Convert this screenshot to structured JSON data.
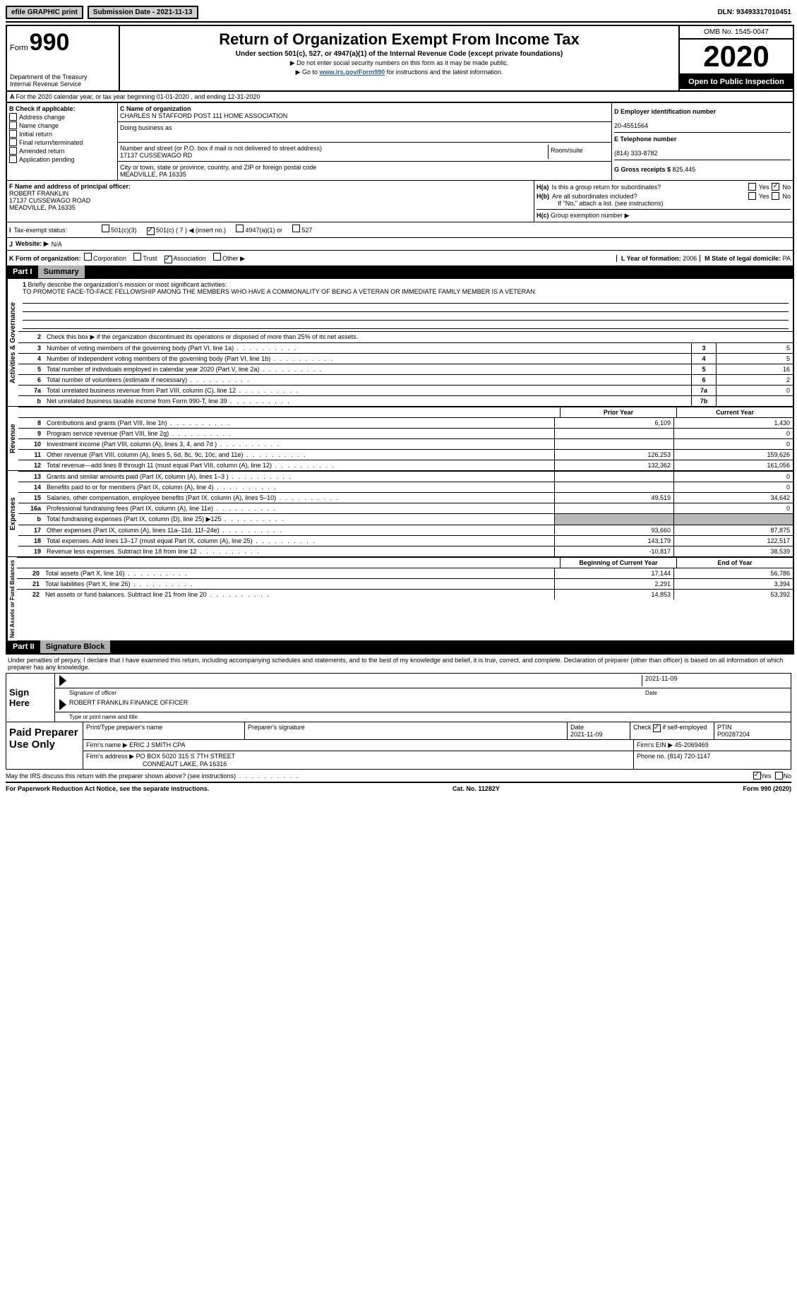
{
  "topbar": {
    "efile": "efile GRAPHIC print",
    "subdate_label": "Submission Date - ",
    "subdate": "2021-11-13",
    "dln_label": "DLN: ",
    "dln": "93493317010451"
  },
  "header": {
    "form_word": "Form",
    "form_num": "990",
    "dept": "Department of the Treasury\nInternal Revenue Service",
    "title": "Return of Organization Exempt From Income Tax",
    "subtitle": "Under section 501(c), 527, or 4947(a)(1) of the Internal Revenue Code (except private foundations)",
    "line1": "▶ Do not enter social security numbers on this form as it may be made public.",
    "line2a": "▶ Go to ",
    "line2link": "www.irs.gov/Form990",
    "line2b": " for instructions and the latest information.",
    "omb": "OMB No. 1545-0047",
    "year": "2020",
    "open": "Open to Public Inspection"
  },
  "a_line": "For the 2020 calendar year, or tax year beginning 01-01-2020     , and ending 12-31-2020",
  "b": {
    "hdr": "B Check if applicable:",
    "items": [
      "Address change",
      "Name change",
      "Initial return",
      "Final return/terminated",
      "Amended return",
      "Application pending"
    ]
  },
  "c": {
    "label": "C Name of organization",
    "name": "CHARLES N STAFFORD POST 111 HOME ASSOCIATION",
    "dba_label": "Doing business as",
    "addr_label": "Number and street (or P.O. box if mail is not delivered to street address)",
    "room": "Room/suite",
    "addr": "17137 CUSSEWAGO RD",
    "city_label": "City or town, state or province, country, and ZIP or foreign postal code",
    "city": "MEADVILLE, PA  16335"
  },
  "d": {
    "label": "D Employer identification number",
    "val": "20-4551564"
  },
  "e": {
    "label": "E Telephone number",
    "val": "(814) 333-8782"
  },
  "g": {
    "label": "G Gross receipts $ ",
    "val": "825,445"
  },
  "f": {
    "label": "F  Name and address of principal officer:",
    "name": "ROBERT FRANKLIN",
    "addr1": "17137 CUSSEWAGO ROAD",
    "addr2": "MEADVILLE, PA  16335"
  },
  "h": {
    "a": "Is this a group return for subordinates?",
    "b": "Are all subordinates included?",
    "bnote": "If \"No,\" attach a list. (see instructions)",
    "c": "Group exemption number ▶",
    "yes": "Yes",
    "no": "No"
  },
  "i": {
    "label": "Tax-exempt status:",
    "opts": [
      "501(c)(3)",
      "501(c) ( 7 ) ◀ (insert no.)",
      "4947(a)(1) or",
      "527"
    ],
    "checked": 1
  },
  "j": {
    "label": "Website: ▶",
    "val": "N/A"
  },
  "k": {
    "label": "K Form of organization:",
    "opts": [
      "Corporation",
      "Trust",
      "Association",
      "Other ▶"
    ],
    "checked": 2
  },
  "l": {
    "label": "L Year of formation: ",
    "val": "2006"
  },
  "m": {
    "label": "M State of legal domicile: ",
    "val": "PA"
  },
  "part1": {
    "num": "Part I",
    "title": "Summary"
  },
  "mission": {
    "num": "1",
    "label": "Briefly describe the organization's mission or most significant activities:",
    "text": "TO PROMOTE FACE-TO-FACE FELLOWSHIP AMONG THE MEMBERS WHO HAVE A COMMONALITY OF BEING A VETERAN OR IMMEDIATE FAMILY MEMBER IS A VETERAN."
  },
  "l2": "Check this box ▶      if the organization discontinued its operations or disposed of more than 25% of its net assets.",
  "lines_gov": [
    {
      "n": "3",
      "t": "Number of voting members of the governing body (Part VI, line 1a)",
      "box": "3",
      "v": "5"
    },
    {
      "n": "4",
      "t": "Number of independent voting members of the governing body (Part VI, line 1b)",
      "box": "4",
      "v": "5"
    },
    {
      "n": "5",
      "t": "Total number of individuals employed in calendar year 2020 (Part V, line 2a)",
      "box": "5",
      "v": "16"
    },
    {
      "n": "6",
      "t": "Total number of volunteers (estimate if necessary)",
      "box": "6",
      "v": "2"
    },
    {
      "n": "7a",
      "t": "Total unrelated business revenue from Part VIII, column (C), line 12",
      "box": "7a",
      "v": "0"
    },
    {
      "n": "b",
      "t": "Net unrelated business taxable income from Form 990-T, line 39",
      "box": "7b",
      "v": ""
    }
  ],
  "colhdr": {
    "c1": "Prior Year",
    "c2": "Current Year"
  },
  "rev": [
    {
      "n": "8",
      "t": "Contributions and grants (Part VIII, line 1h)",
      "c1": "6,109",
      "c2": "1,430"
    },
    {
      "n": "9",
      "t": "Program service revenue (Part VIII, line 2g)",
      "c1": "",
      "c2": "0"
    },
    {
      "n": "10",
      "t": "Investment income (Part VIII, column (A), lines 3, 4, and 7d )",
      "c1": "",
      "c2": "0"
    },
    {
      "n": "11",
      "t": "Other revenue (Part VIII, column (A), lines 5, 6d, 8c, 9c, 10c, and 11e)",
      "c1": "126,253",
      "c2": "159,626"
    },
    {
      "n": "12",
      "t": "Total revenue—add lines 8 through 11 (must equal Part VIII, column (A), line 12)",
      "c1": "132,362",
      "c2": "161,056"
    }
  ],
  "exp": [
    {
      "n": "13",
      "t": "Grants and similar amounts paid (Part IX, column (A), lines 1–3 )",
      "c1": "",
      "c2": "0"
    },
    {
      "n": "14",
      "t": "Benefits paid to or for members (Part IX, column (A), line 4)",
      "c1": "",
      "c2": "0"
    },
    {
      "n": "15",
      "t": "Salaries, other compensation, employee benefits (Part IX, column (A), lines 5–10)",
      "c1": "49,519",
      "c2": "34,642"
    },
    {
      "n": "16a",
      "t": "Professional fundraising fees (Part IX, column (A), line 11e)",
      "c1": "",
      "c2": "0"
    },
    {
      "n": "b",
      "t": "Total fundraising expenses (Part IX, column (D), line 25) ▶125",
      "c1": "grey",
      "c2": "grey"
    },
    {
      "n": "17",
      "t": "Other expenses (Part IX, column (A), lines 11a–11d, 11f–24e)",
      "c1": "93,660",
      "c2": "87,875"
    },
    {
      "n": "18",
      "t": "Total expenses. Add lines 13–17 (must equal Part IX, column (A), line 25)",
      "c1": "143,179",
      "c2": "122,517"
    },
    {
      "n": "19",
      "t": "Revenue less expenses. Subtract line 18 from line 12",
      "c1": "-10,817",
      "c2": "38,539"
    }
  ],
  "colhdr2": {
    "c1": "Beginning of Current Year",
    "c2": "End of Year"
  },
  "net": [
    {
      "n": "20",
      "t": "Total assets (Part X, line 16)",
      "c1": "17,144",
      "c2": "56,786"
    },
    {
      "n": "21",
      "t": "Total liabilities (Part X, line 26)",
      "c1": "2,291",
      "c2": "3,394"
    },
    {
      "n": "22",
      "t": "Net assets or fund balances. Subtract line 21 from line 20",
      "c1": "14,853",
      "c2": "53,392"
    }
  ],
  "vtabs": {
    "gov": "Activities & Governance",
    "rev": "Revenue",
    "exp": "Expenses",
    "net": "Net Assets or Fund Balances"
  },
  "part2": {
    "num": "Part II",
    "title": "Signature Block"
  },
  "sig": {
    "decl": "Under penalties of perjury, I declare that I have examined this return, including accompanying schedules and statements, and to the best of my knowledge and belief, it is true, correct, and complete. Declaration of preparer (other than officer) is based on all information of which preparer has any knowledge.",
    "sign_here": "Sign Here",
    "sig_of": "Signature of officer",
    "date": "Date",
    "date_val": "2021-11-09",
    "officer": "ROBERT FRANKLIN FINANCE OFFICER",
    "type_name": "Type or print name and title"
  },
  "prep": {
    "label": "Paid Preparer Use Only",
    "h1": "Print/Type preparer's name",
    "h2": "Preparer's signature",
    "h3": "Date",
    "h3v": "2021-11-09",
    "h4": "Check       if self-employed",
    "h5": "PTIN",
    "h5v": "P00287204",
    "firm": "Firm's name    ▶",
    "firmv": "ERIC J SMITH CPA",
    "ein": "Firm's EIN ▶",
    "einv": "45-2069469",
    "addr": "Firm's address ▶",
    "addrv": "PO BOX 5020 315 S 7TH STREET",
    "addrv2": "CONNEAUT LAKE, PA  16316",
    "phone": "Phone no. ",
    "phonev": "(814) 720-1147"
  },
  "discuss": {
    "q": "May the IRS discuss this return with the preparer shown above? (see instructions)",
    "yes": "Yes",
    "no": "No"
  },
  "footer": {
    "l": "For Paperwork Reduction Act Notice, see the separate instructions.",
    "c": "Cat. No. 11282Y",
    "r": "Form 990 (2020)"
  }
}
